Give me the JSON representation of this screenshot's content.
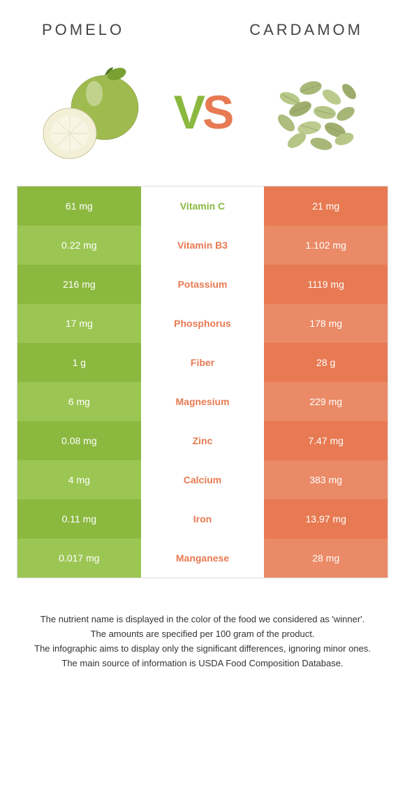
{
  "left_food": "POMELO",
  "right_food": "CARDAMOM",
  "vs_v": "V",
  "vs_s": "S",
  "colors": {
    "left_a": "#8bb83f",
    "left_b": "#9cc653",
    "right_a": "#e77a52",
    "right_b": "#ea8a66",
    "mid_left": "#8bb83f",
    "mid_right": "#e77a52"
  },
  "table": {
    "rows": [
      {
        "left": "61 mg",
        "mid": "Vitamin C",
        "right": "21 mg",
        "winner": "left"
      },
      {
        "left": "0.22 mg",
        "mid": "Vitamin B3",
        "right": "1.102 mg",
        "winner": "right"
      },
      {
        "left": "216 mg",
        "mid": "Potassium",
        "right": "1119 mg",
        "winner": "right"
      },
      {
        "left": "17 mg",
        "mid": "Phosphorus",
        "right": "178 mg",
        "winner": "right"
      },
      {
        "left": "1 g",
        "mid": "Fiber",
        "right": "28 g",
        "winner": "right"
      },
      {
        "left": "6 mg",
        "mid": "Magnesium",
        "right": "229 mg",
        "winner": "right"
      },
      {
        "left": "0.08 mg",
        "mid": "Zinc",
        "right": "7.47 mg",
        "winner": "right"
      },
      {
        "left": "4 mg",
        "mid": "Calcium",
        "right": "383 mg",
        "winner": "right"
      },
      {
        "left": "0.11 mg",
        "mid": "Iron",
        "right": "13.97 mg",
        "winner": "right"
      },
      {
        "left": "0.017 mg",
        "mid": "Manganese",
        "right": "28 mg",
        "winner": "right"
      }
    ]
  },
  "footnotes": [
    "The nutrient name is displayed in the color of the food we considered as 'winner'.",
    "The amounts are specified per 100 gram of the product.",
    "The infographic aims to display only the significant differences, ignoring minor ones.",
    "The main source of information is USDA Food Composition Database."
  ]
}
